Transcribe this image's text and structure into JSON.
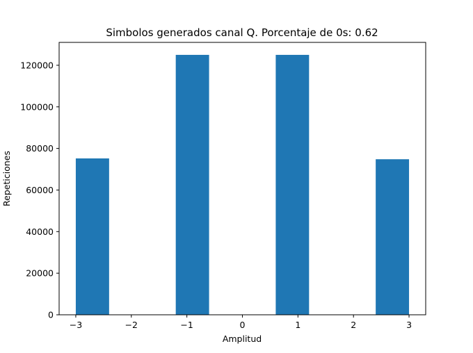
{
  "chart_data": {
    "type": "bar",
    "title": "Simbolos generados canal Q. Porcentaje de 0s: 0.62",
    "xlabel": "Amplitud",
    "ylabel": "Repeticiones",
    "xlim": [
      -3.3,
      3.3
    ],
    "ylim": [
      0,
      131000
    ],
    "xticks": [
      -3,
      -2,
      -1,
      0,
      1,
      2,
      3
    ],
    "xtick_labels": [
      "−3",
      "−2",
      "−1",
      "0",
      "1",
      "2",
      "3"
    ],
    "yticks": [
      0,
      20000,
      40000,
      60000,
      80000,
      100000,
      120000
    ],
    "ytick_labels": [
      "0",
      "20000",
      "40000",
      "60000",
      "80000",
      "100000",
      "120000"
    ],
    "bar_color": "#1f77b4",
    "bars": [
      {
        "x0": -3.0,
        "x1": -2.4,
        "value": 75200
      },
      {
        "x0": -1.2,
        "x1": -0.6,
        "value": 125000
      },
      {
        "x0": 0.6,
        "x1": 1.2,
        "value": 125000
      },
      {
        "x0": 2.4,
        "x1": 3.0,
        "value": 74800
      }
    ],
    "grid": false,
    "legend": "none"
  }
}
